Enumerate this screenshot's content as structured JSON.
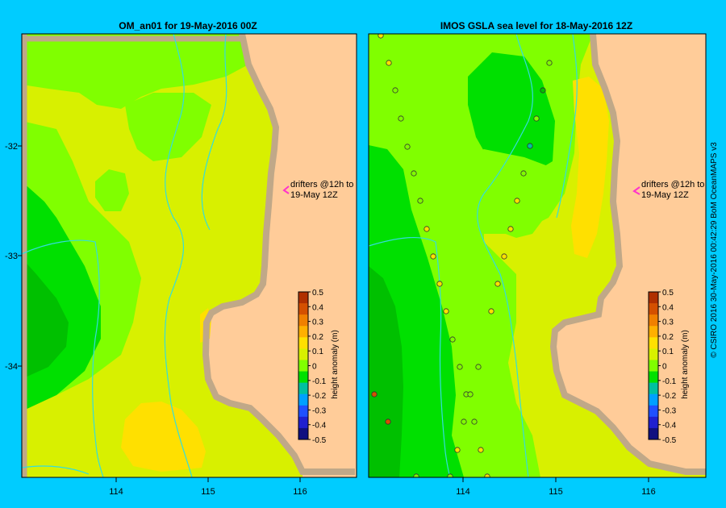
{
  "background_color": "#00ccff",
  "land_color": "#ffcc99",
  "coast_color": "#c0a888",
  "left_panel": {
    "title": "OM_an01  for 19-May-2016 00Z",
    "drifter_note_line1": "drifters @12h to",
    "drifter_note_line2": "19-May 12Z",
    "colorbar_label": "height anomaly (m)"
  },
  "right_panel": {
    "title": "IMOS  GSLA sea level   for 18-May-2016 12Z",
    "drifter_note_line1": "drifters @12h to",
    "drifter_note_line2": "19-May 12Z",
    "colorbar_label": "height anomaly (m)"
  },
  "axes": {
    "lat_ticks": [
      "-32",
      "-33",
      "-34"
    ],
    "lon_ticks": [
      "114",
      "115",
      "116"
    ]
  },
  "colorbar": {
    "ticks": [
      "0.5",
      "0.4",
      "0.3",
      "0.2",
      "0.1",
      "0",
      "-0.1",
      "-0.2",
      "-0.3",
      "-0.4",
      "-0.5"
    ],
    "colors": [
      "#b03000",
      "#d45000",
      "#f08000",
      "#ffb000",
      "#ffe000",
      "#d8f000",
      "#80ff00",
      "#00e000",
      "#00c0a0",
      "#00a0ff",
      "#2050ff",
      "#2020d0",
      "#101080"
    ]
  },
  "credit": "© CSIRO 2016   30-May-2016 00:42:29 BoM OceanMAPS v3"
}
